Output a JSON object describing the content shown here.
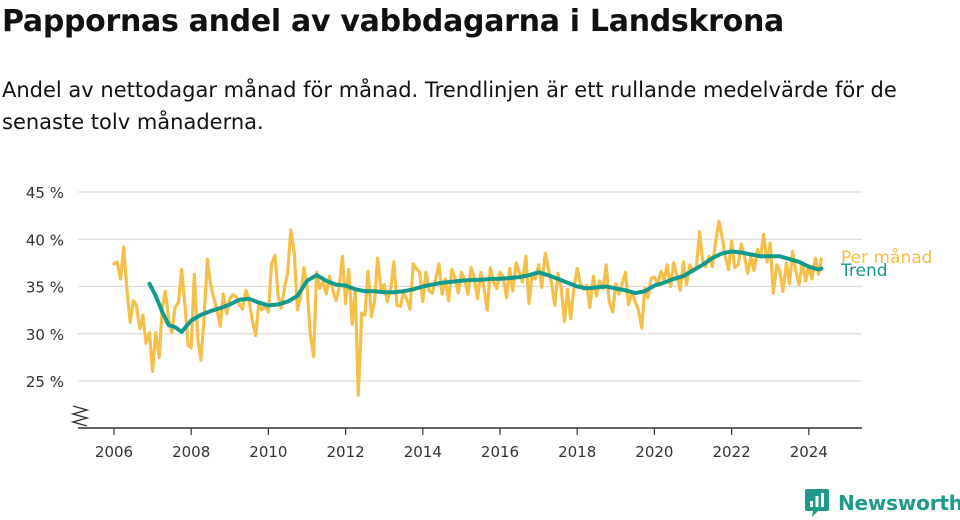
{
  "header": {
    "title": "Pappornas andel av vabbdagarna i Landskrona",
    "subtitle": "Andel av nettodagar månad för månad. Trendlinjen är ett rullande medelvärde för de senaste tolv månaderna."
  },
  "brand": {
    "name": "Newsworthy",
    "color": "#1f9a8a",
    "icon": "bar-chart-logo-icon"
  },
  "chart_data": {
    "type": "line",
    "title": "Pappornas andel av vabbdagarna i Landskrona",
    "subtitle": "Andel av nettodagar månad för månad. Trendlinjen är ett rullande medelvärde för de senaste tolv månaderna.",
    "x_unit": "year",
    "xlim": [
      2005.5,
      2025.2
    ],
    "ylim": [
      20,
      45
    ],
    "y_axis_break": true,
    "grid": "horizontal",
    "legend_placement": "right, at line ends",
    "xticks": [
      2006,
      2008,
      2010,
      2012,
      2014,
      2016,
      2018,
      2020,
      2022,
      2024
    ],
    "xtick_labels": [
      "2006",
      "2008",
      "2010",
      "2012",
      "2014",
      "2016",
      "2018",
      "2020",
      "2022",
      "2024"
    ],
    "yticks": [
      25,
      30,
      35,
      40,
      45
    ],
    "ytick_labels": [
      "25 %",
      "30 %",
      "35 %",
      "40 %",
      "45 %"
    ],
    "series": [
      {
        "name": "Per månad",
        "color": "#f5c04a",
        "x": [
          2006.0,
          2006.08,
          2006.17,
          2006.25,
          2006.33,
          2006.42,
          2006.5,
          2006.58,
          2006.67,
          2006.75,
          2006.83,
          2006.92,
          2007.0,
          2007.08,
          2007.17,
          2007.25,
          2007.33,
          2007.42,
          2007.5,
          2007.58,
          2007.67,
          2007.75,
          2007.83,
          2007.92,
          2008.0,
          2008.08,
          2008.17,
          2008.25,
          2008.33,
          2008.42,
          2008.5,
          2008.58,
          2008.67,
          2008.75,
          2008.83,
          2008.92,
          2009.0,
          2009.08,
          2009.17,
          2009.25,
          2009.33,
          2009.42,
          2009.5,
          2009.58,
          2009.67,
          2009.75,
          2009.83,
          2009.92,
          2010.0,
          2010.08,
          2010.17,
          2010.25,
          2010.33,
          2010.42,
          2010.5,
          2010.58,
          2010.67,
          2010.75,
          2010.83,
          2010.92,
          2011.0,
          2011.08,
          2011.17,
          2011.25,
          2011.33,
          2011.42,
          2011.5,
          2011.58,
          2011.67,
          2011.75,
          2011.83,
          2011.92,
          2012.0,
          2012.08,
          2012.17,
          2012.25,
          2012.33,
          2012.42,
          2012.5,
          2012.58,
          2012.67,
          2012.75,
          2012.83,
          2012.92,
          2013.0,
          2013.08,
          2013.17,
          2013.25,
          2013.33,
          2013.42,
          2013.5,
          2013.58,
          2013.67,
          2013.75,
          2013.83,
          2013.92,
          2014.0,
          2014.08,
          2014.17,
          2014.25,
          2014.33,
          2014.42,
          2014.5,
          2014.58,
          2014.67,
          2014.75,
          2014.83,
          2014.92,
          2015.0,
          2015.08,
          2015.17,
          2015.25,
          2015.33,
          2015.42,
          2015.5,
          2015.58,
          2015.67,
          2015.75,
          2015.83,
          2015.92,
          2016.0,
          2016.08,
          2016.17,
          2016.25,
          2016.33,
          2016.42,
          2016.5,
          2016.58,
          2016.67,
          2016.75,
          2016.83,
          2016.92,
          2017.0,
          2017.08,
          2017.17,
          2017.25,
          2017.33,
          2017.42,
          2017.5,
          2017.58,
          2017.67,
          2017.75,
          2017.83,
          2017.92,
          2018.0,
          2018.08,
          2018.17,
          2018.25,
          2018.33,
          2018.42,
          2018.5,
          2018.58,
          2018.67,
          2018.75,
          2018.83,
          2018.92,
          2019.0,
          2019.08,
          2019.17,
          2019.25,
          2019.33,
          2019.42,
          2019.5,
          2019.58,
          2019.67,
          2019.75,
          2019.83,
          2019.92,
          2020.0,
          2020.08,
          2020.17,
          2020.25,
          2020.33,
          2020.42,
          2020.5,
          2020.58,
          2020.67,
          2020.75,
          2020.83,
          2020.92,
          2021.0,
          2021.08,
          2021.17,
          2021.25,
          2021.33,
          2021.42,
          2021.5,
          2021.58,
          2021.67,
          2021.75,
          2021.83,
          2021.92,
          2022.0,
          2022.08,
          2022.17,
          2022.25,
          2022.33,
          2022.42,
          2022.5,
          2022.58,
          2022.67,
          2022.75,
          2022.83,
          2022.92,
          2023.0,
          2023.08,
          2023.17,
          2023.25,
          2023.33,
          2023.42,
          2023.5,
          2023.58,
          2023.67,
          2023.75,
          2023.83,
          2023.92,
          2024.0,
          2024.08,
          2024.17,
          2024.25,
          2024.33
        ],
        "values": [
          37.4,
          37.6,
          35.8,
          39.2,
          35.0,
          31.2,
          33.5,
          33.0,
          30.5,
          32.0,
          29.0,
          30.1,
          26.0,
          30.1,
          27.5,
          32.8,
          34.5,
          31.5,
          30.1,
          32.8,
          33.3,
          36.8,
          33.5,
          28.8,
          28.5,
          36.3,
          29.5,
          27.2,
          31.5,
          37.9,
          35.3,
          33.8,
          32.5,
          30.8,
          34.2,
          32.1,
          33.7,
          34.1,
          33.9,
          33.1,
          32.6,
          34.6,
          33.5,
          31.5,
          29.8,
          33.2,
          32.5,
          33.0,
          32.3,
          37.4,
          38.3,
          34.0,
          32.7,
          34.9,
          36.5,
          41.0,
          38.5,
          32.5,
          33.8,
          37.0,
          35.1,
          30.1,
          27.6,
          36.5,
          34.8,
          35.5,
          34.2,
          36.1,
          34.6,
          33.5,
          34.8,
          38.2,
          33.2,
          36.8,
          31.0,
          34.6,
          23.5,
          32.2,
          32.0,
          36.6,
          31.8,
          33.5,
          38.0,
          34.6,
          35.2,
          33.4,
          34.8,
          37.6,
          33.0,
          32.9,
          34.3,
          33.7,
          32.6,
          37.4,
          36.9,
          36.5,
          33.4,
          36.5,
          34.5,
          34.3,
          35.7,
          37.4,
          34.2,
          35.8,
          33.5,
          36.8,
          36.0,
          34.3,
          36.5,
          35.8,
          34.2,
          37.0,
          36.0,
          33.7,
          36.5,
          35.0,
          32.5,
          37.0,
          35.5,
          34.8,
          36.5,
          36.0,
          33.8,
          36.9,
          34.5,
          37.5,
          36.5,
          35.5,
          38.2,
          33.2,
          36.2,
          35.8,
          37.3,
          34.9,
          38.5,
          37.0,
          35.5,
          33.0,
          36.4,
          35.0,
          31.3,
          34.7,
          31.6,
          35.0,
          36.9,
          35.3,
          34.7,
          35.1,
          32.8,
          36.1,
          34.0,
          35.6,
          34.8,
          37.3,
          33.4,
          32.3,
          35.3,
          34.2,
          35.4,
          36.5,
          33.1,
          34.3,
          33.4,
          32.6,
          30.6,
          34.8,
          33.8,
          35.9,
          36.0,
          35.3,
          36.6,
          35.6,
          37.3,
          35.0,
          37.5,
          36.2,
          34.6,
          37.6,
          35.2,
          37.3,
          36.6,
          36.8,
          40.8,
          37.7,
          37.1,
          38.2,
          37.1,
          39.6,
          41.9,
          40.3,
          38.3,
          36.8,
          39.8,
          37.0,
          37.3,
          39.5,
          38.3,
          36.4,
          38.2,
          36.7,
          38.9,
          38.1,
          40.5,
          37.6,
          39.6,
          34.3,
          37.3,
          36.6,
          34.5,
          37.5,
          35.3,
          38.7,
          36.5,
          35.2,
          37.5,
          35.6,
          37.2,
          35.8,
          38.0,
          36.3,
          37.9
        ]
      },
      {
        "name": "Trend",
        "color": "#139a8c",
        "x": [
          2006.92,
          2007.08,
          2007.25,
          2007.42,
          2007.58,
          2007.75,
          2008.0,
          2008.25,
          2008.5,
          2008.75,
          2009.0,
          2009.25,
          2009.5,
          2009.75,
          2010.0,
          2010.25,
          2010.5,
          2010.75,
          2011.0,
          2011.25,
          2011.5,
          2011.75,
          2012.0,
          2012.25,
          2012.5,
          2012.75,
          2013.0,
          2013.25,
          2013.5,
          2013.75,
          2014.0,
          2014.25,
          2014.5,
          2014.75,
          2015.0,
          2015.25,
          2015.5,
          2015.75,
          2016.0,
          2016.25,
          2016.5,
          2016.75,
          2017.0,
          2017.25,
          2017.5,
          2017.75,
          2018.0,
          2018.25,
          2018.5,
          2018.75,
          2019.0,
          2019.25,
          2019.5,
          2019.75,
          2020.0,
          2020.25,
          2020.5,
          2020.75,
          2021.0,
          2021.25,
          2021.5,
          2021.75,
          2022.0,
          2022.25,
          2022.5,
          2022.75,
          2023.0,
          2023.25,
          2023.5,
          2023.75,
          2024.0,
          2024.25,
          2024.33
        ],
        "values": [
          35.3,
          34.0,
          32.3,
          30.9,
          30.7,
          30.2,
          31.4,
          32.0,
          32.4,
          32.7,
          33.1,
          33.6,
          33.7,
          33.3,
          33.0,
          33.1,
          33.4,
          34.0,
          35.6,
          36.2,
          35.6,
          35.2,
          35.1,
          34.7,
          34.5,
          34.5,
          34.4,
          34.4,
          34.5,
          34.7,
          35.0,
          35.2,
          35.4,
          35.5,
          35.6,
          35.7,
          35.7,
          35.8,
          35.8,
          35.9,
          36.0,
          36.2,
          36.5,
          36.2,
          35.8,
          35.4,
          35.0,
          34.8,
          34.9,
          35.0,
          34.8,
          34.6,
          34.3,
          34.5,
          35.1,
          35.4,
          35.8,
          36.1,
          36.7,
          37.3,
          38.0,
          38.5,
          38.7,
          38.6,
          38.4,
          38.2,
          38.2,
          38.2,
          37.9,
          37.6,
          37.1,
          36.8,
          36.9
        ]
      }
    ]
  }
}
